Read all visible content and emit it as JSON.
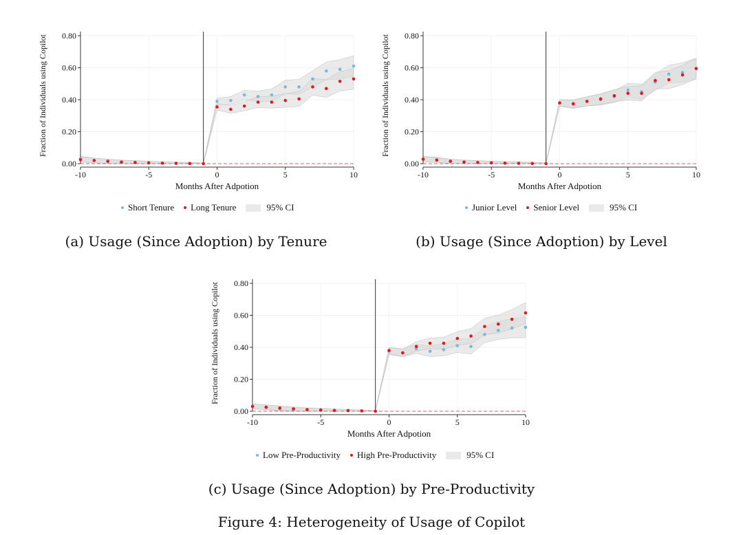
{
  "figure_caption": "Figure 4: Heterogeneity of Usage of Copilot",
  "colors": {
    "series1": "#7ab8dd",
    "series2": "#e3171c",
    "ci": "#d8d8d8",
    "zero_line": "#e8555d"
  },
  "chart_data": [
    {
      "type": "scatter",
      "caption": "(a) Usage (Since Adoption) by Tenure",
      "xlabel": "Months After Adpotion",
      "ylabel": "Fraction of Individuals using Copilot",
      "xlim": [
        -10,
        10
      ],
      "ylim": [
        0,
        0.8
      ],
      "x_ticks": [
        "-10",
        "-5",
        "0",
        "5",
        "10"
      ],
      "y_ticks": [
        "0.00",
        "0.20",
        "0.40",
        "0.60",
        "0.80"
      ],
      "event_line_x": -1,
      "legend": [
        "Short Tenure",
        "Long Tenure",
        "95% CI"
      ],
      "series": [
        {
          "name": "Short Tenure",
          "x": [
            -10,
            -9,
            -8,
            -7,
            -6,
            -5,
            -4,
            -3,
            -2,
            -1,
            0,
            1,
            2,
            3,
            4,
            5,
            6,
            7,
            8,
            9,
            10
          ],
          "values": [
            0.03,
            0.02,
            0.015,
            0.01,
            0.008,
            0.005,
            0.003,
            0.002,
            0.001,
            0,
            0.39,
            0.395,
            0.43,
            0.42,
            0.43,
            0.48,
            0.48,
            0.53,
            0.58,
            0.59,
            0.61
          ]
        },
        {
          "name": "Long Tenure",
          "x": [
            -10,
            -9,
            -8,
            -7,
            -6,
            -5,
            -4,
            -3,
            -2,
            -1,
            0,
            1,
            2,
            3,
            4,
            5,
            6,
            7,
            8,
            9,
            10
          ],
          "values": [
            0.025,
            0.02,
            0.015,
            0.01,
            0.007,
            0.005,
            0.003,
            0.002,
            0.001,
            0,
            0.355,
            0.34,
            0.36,
            0.385,
            0.385,
            0.395,
            0.405,
            0.48,
            0.47,
            0.515,
            0.53
          ]
        }
      ]
    },
    {
      "type": "scatter",
      "caption": "(b) Usage (Since Adoption) by Level",
      "xlabel": "Months After Adpotion",
      "ylabel": "Fraction of Individuals using Copilot",
      "xlim": [
        -10,
        10
      ],
      "ylim": [
        0,
        0.8
      ],
      "x_ticks": [
        "-10",
        "-5",
        "0",
        "5",
        "10"
      ],
      "y_ticks": [
        "0.00",
        "0.20",
        "0.40",
        "0.60",
        "0.80"
      ],
      "event_line_x": -1,
      "legend": [
        "Junior Level",
        "Senior Level",
        "95% CI"
      ],
      "series": [
        {
          "name": "Junior Level",
          "x": [
            -10,
            -9,
            -8,
            -7,
            -6,
            -5,
            -4,
            -3,
            -2,
            -1,
            0,
            1,
            2,
            3,
            4,
            5,
            6,
            7,
            8,
            9,
            10
          ],
          "values": [
            0.03,
            0.025,
            0.015,
            0.01,
            0.008,
            0.005,
            0.004,
            0.003,
            0.002,
            0,
            0.38,
            0.37,
            0.39,
            0.4,
            0.42,
            0.46,
            0.45,
            0.51,
            0.56,
            0.57,
            0.595
          ]
        },
        {
          "name": "Senior Level",
          "x": [
            -10,
            -9,
            -8,
            -7,
            -6,
            -5,
            -4,
            -3,
            -2,
            -1,
            0,
            1,
            2,
            3,
            4,
            5,
            6,
            7,
            8,
            9,
            10
          ],
          "values": [
            0.028,
            0.022,
            0.015,
            0.01,
            0.007,
            0.005,
            0.003,
            0.002,
            0.001,
            0,
            0.38,
            0.375,
            0.39,
            0.405,
            0.425,
            0.44,
            0.44,
            0.52,
            0.525,
            0.555,
            0.595
          ]
        }
      ]
    },
    {
      "type": "scatter",
      "caption": "(c) Usage (Since Adoption) by Pre-Productivity",
      "xlabel": "Months After Adpotion",
      "ylabel": "Fraction of Individuals using Copilot",
      "xlim": [
        -10,
        10
      ],
      "ylim": [
        0,
        0.8
      ],
      "x_ticks": [
        "-10",
        "-5",
        "0",
        "5",
        "10"
      ],
      "y_ticks": [
        "0.00",
        "0.20",
        "0.40",
        "0.60",
        "0.80"
      ],
      "event_line_x": -1,
      "legend": [
        "Low Pre-Productivity",
        "High Pre-Productivity",
        "95% CI"
      ],
      "series": [
        {
          "name": "Low Pre-Productivity",
          "x": [
            -10,
            -9,
            -8,
            -7,
            -6,
            -5,
            -4,
            -3,
            -2,
            -1,
            0,
            1,
            2,
            3,
            4,
            5,
            6,
            7,
            8,
            9,
            10
          ],
          "values": [
            0.03,
            0.025,
            0.015,
            0.01,
            0.008,
            0.005,
            0.004,
            0.003,
            0.002,
            0,
            0.375,
            0.365,
            0.39,
            0.375,
            0.385,
            0.41,
            0.405,
            0.48,
            0.505,
            0.52,
            0.525
          ]
        },
        {
          "name": "High Pre-Productivity",
          "x": [
            -10,
            -9,
            -8,
            -7,
            -6,
            -5,
            -4,
            -3,
            -2,
            -1,
            0,
            1,
            2,
            3,
            4,
            5,
            6,
            7,
            8,
            9,
            10
          ],
          "values": [
            0.03,
            0.025,
            0.02,
            0.015,
            0.01,
            0.008,
            0.005,
            0.004,
            0.002,
            0,
            0.38,
            0.365,
            0.405,
            0.425,
            0.425,
            0.455,
            0.47,
            0.53,
            0.545,
            0.575,
            0.615
          ]
        }
      ]
    }
  ]
}
